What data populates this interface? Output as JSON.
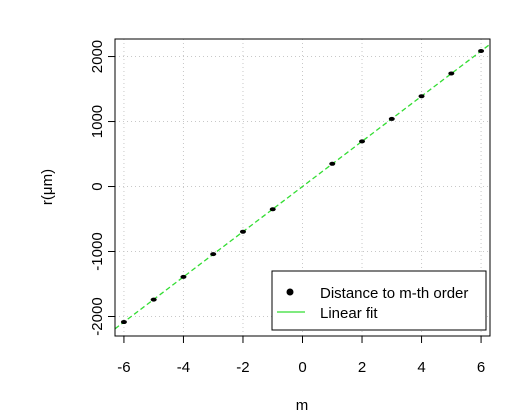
{
  "colors": {
    "points": "#000000",
    "fit": "#33dd33",
    "grid": "#c8c8c8"
  },
  "chart_data": {
    "type": "scatter",
    "title": "",
    "xlabel": "m",
    "ylabel": "r(μm)",
    "xlim": [
      -6.3,
      6.3
    ],
    "ylim": [
      -2300,
      2270
    ],
    "xticks": [
      -6,
      -4,
      -2,
      0,
      2,
      4,
      6
    ],
    "xtick_labels": [
      "-6",
      "-4",
      "-2",
      "0",
      "2",
      "4",
      "6"
    ],
    "yticks": [
      -2000,
      -1000,
      0,
      1000,
      2000
    ],
    "ytick_labels": [
      "-2000",
      "-1000",
      "0",
      "1000",
      "2000"
    ],
    "grid": true,
    "legend_position": "bottom-right",
    "series": [
      {
        "name": "Distance to m-th order",
        "kind": "points",
        "x": [
          -6,
          -5,
          -4,
          -3,
          -2,
          -1,
          1,
          2,
          3,
          4,
          5,
          6
        ],
        "y": [
          -2085,
          -1740,
          -1390,
          -1040,
          -695,
          -350,
          350,
          695,
          1040,
          1390,
          1740,
          2085
        ]
      },
      {
        "name": "Linear fit",
        "kind": "line",
        "slope": 347.5,
        "intercept": 0
      }
    ]
  }
}
